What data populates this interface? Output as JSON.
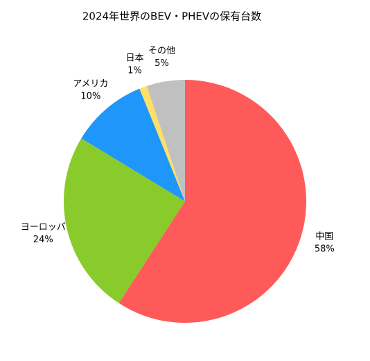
{
  "chart_data": {
    "type": "pie",
    "title": "2024年世界のBEV・PHEVの保有台数",
    "categories": [
      "中国",
      "ヨーロッパ",
      "アメリカ",
      "日本",
      "その他"
    ],
    "values": [
      58,
      24,
      10,
      1,
      5
    ],
    "value_labels": [
      "58%",
      "24%",
      "10%",
      "1%",
      "5%"
    ],
    "colors": [
      "#ff5a5a",
      "#88cb2b",
      "#1e96fa",
      "#ffe066",
      "#c0c0c0"
    ]
  }
}
